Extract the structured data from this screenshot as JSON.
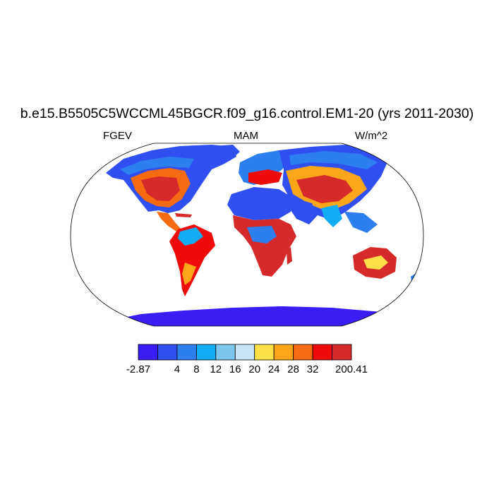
{
  "title": "b.e15.B5505C5WCCML45BGCR.f09_g16.control.EM1-20 (yrs 2011-2030)",
  "left_label": "FGEV",
  "center_label": "MAM",
  "right_label": "W/m^2",
  "colorbar": {
    "colors": [
      "#3a1cf5",
      "#2f4ff0",
      "#2d7ff0",
      "#12acf5",
      "#7cc6ee",
      "#c9e4f5",
      "#fde047",
      "#fba51b",
      "#f66a11",
      "#f00b0b",
      "#d52a2a"
    ],
    "labels": [
      "-2.87",
      "4",
      "8",
      "12",
      "16",
      "20",
      "24",
      "28",
      "32",
      "200.41"
    ]
  },
  "map": {
    "projection": "Robinson",
    "ocean_color": "#ffffff",
    "outline_color": "#000000"
  }
}
